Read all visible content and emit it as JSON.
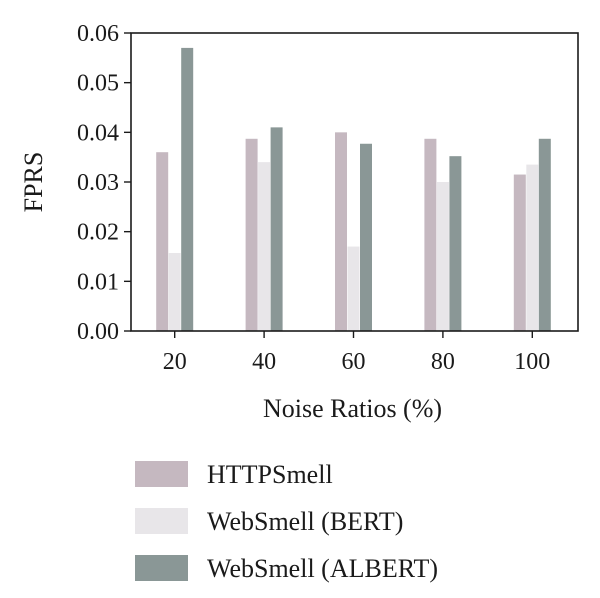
{
  "chart_data": {
    "type": "bar",
    "ylabel": "FPRS",
    "xlabel": "Noise Ratios (%)",
    "categories": [
      "20",
      "40",
      "60",
      "80",
      "100"
    ],
    "ylim": [
      0,
      0.06
    ],
    "yticks": [
      "0.00",
      "0.01",
      "0.02",
      "0.03",
      "0.04",
      "0.05",
      "0.06"
    ],
    "grid": false,
    "legend_position": "bottom",
    "series": [
      {
        "name": "HTTPSmell",
        "color": "#c5b8c0",
        "values": [
          0.036,
          0.0387,
          0.04,
          0.0387,
          0.0315
        ]
      },
      {
        "name": "WebSmell (BERT)",
        "color": "#e8e6e9",
        "values": [
          0.0157,
          0.034,
          0.017,
          0.03,
          0.0335
        ]
      },
      {
        "name": "WebSmell (ALBERT)",
        "color": "#8a9796",
        "values": [
          0.057,
          0.041,
          0.0377,
          0.0352,
          0.0387
        ]
      }
    ]
  }
}
